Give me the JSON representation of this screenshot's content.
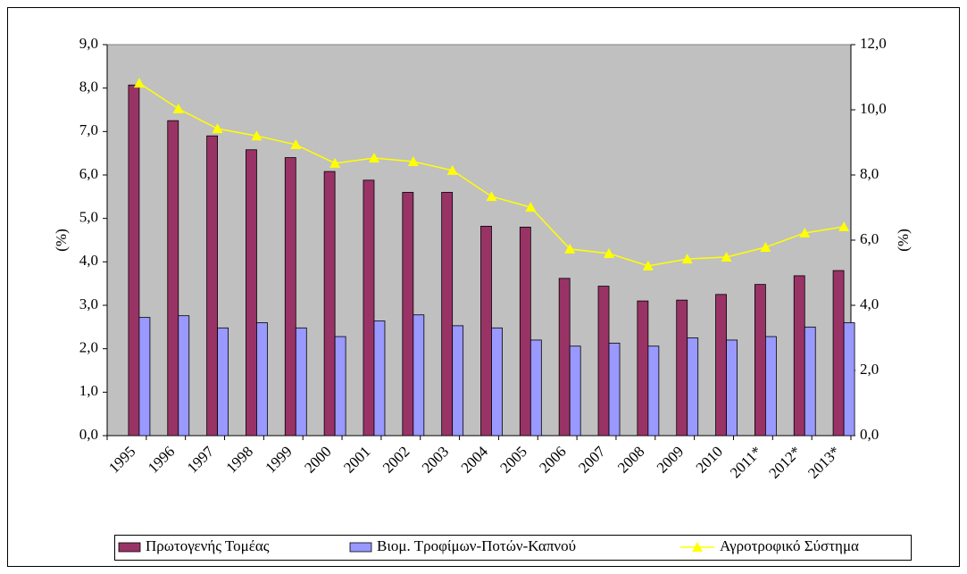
{
  "chart_data": {
    "type": "bar",
    "categories": [
      "1995",
      "1996",
      "1997",
      "1998",
      "1999",
      "2000",
      "2001",
      "2002",
      "2003",
      "2004",
      "2005",
      "2006",
      "2007",
      "2008",
      "2009",
      "2010",
      "2011*",
      "2012*",
      "2013*"
    ],
    "series": [
      {
        "name": "Πρωτογενής Τομέας",
        "color": "#993366",
        "values": [
          8.07,
          7.25,
          6.9,
          6.58,
          6.4,
          6.08,
          5.88,
          5.6,
          5.6,
          4.82,
          4.8,
          3.62,
          3.44,
          3.1,
          3.12,
          3.25,
          3.48,
          3.68,
          3.8
        ]
      },
      {
        "name": "Βιομ. Τροφίμων-Ποτών-Καπνού",
        "color": "#9999ff",
        "values": [
          2.72,
          2.76,
          2.48,
          2.6,
          2.48,
          2.28,
          2.64,
          2.78,
          2.53,
          2.48,
          2.2,
          2.06,
          2.13,
          2.06,
          2.25,
          2.2,
          2.28,
          2.5,
          2.6
        ]
      },
      {
        "name": "Αγροτροφικό Σύστημα",
        "color": "#ffff00",
        "type": "line",
        "axis": "y2",
        "values": [
          10.82,
          10.03,
          9.42,
          9.2,
          8.93,
          8.36,
          8.52,
          8.41,
          8.14,
          7.34,
          7.01,
          5.73,
          5.59,
          5.21,
          5.42,
          5.48,
          5.78,
          6.22,
          6.41
        ]
      }
    ],
    "ylabel": "(%)",
    "y2label": "(%)",
    "ylim": [
      0,
      9
    ],
    "yticks": [
      {
        "value": 0,
        "label": "0,0"
      },
      {
        "value": 1,
        "label": "1,0"
      },
      {
        "value": 2,
        "label": "2,0"
      },
      {
        "value": 3,
        "label": "3,0"
      },
      {
        "value": 4,
        "label": "4,0"
      },
      {
        "value": 5,
        "label": "5,0"
      },
      {
        "value": 6,
        "label": "6,0"
      },
      {
        "value": 7,
        "label": "7,0"
      },
      {
        "value": 8,
        "label": "8,0"
      },
      {
        "value": 9,
        "label": "9,0"
      }
    ],
    "y2lim": [
      0,
      12
    ],
    "y2ticks": [
      {
        "value": 0,
        "label": "0,0"
      },
      {
        "value": 2,
        "label": "2,0"
      },
      {
        "value": 4,
        "label": "4,0"
      },
      {
        "value": 6,
        "label": "6,0"
      },
      {
        "value": 8,
        "label": "8,0"
      },
      {
        "value": 10,
        "label": "10,0"
      },
      {
        "value": 12,
        "label": "12,0"
      }
    ],
    "plot_background": "#c0c0c0",
    "legend": "bottom"
  }
}
